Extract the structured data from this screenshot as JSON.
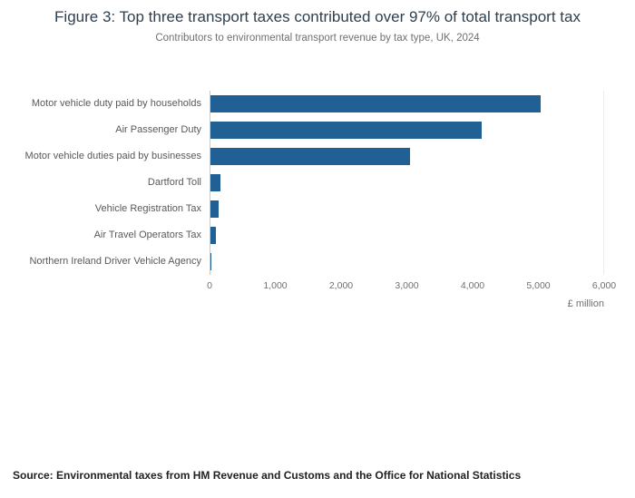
{
  "chart_data": {
    "type": "bar",
    "orientation": "horizontal",
    "title": "Figure 3: Top three transport taxes contributed over 97% of total transport tax",
    "subtitle": "Contributors to environmental transport revenue by tax type, UK, 2024",
    "categories": [
      "Motor vehicle duty paid by households",
      "Air Passenger Duty",
      "Motor vehicle duties paid by businesses",
      "Dartford Toll",
      "Vehicle Registration Tax",
      "Air Travel Operators Tax",
      "Northern Ireland Driver Vehicle Agency"
    ],
    "values": [
      5050,
      4150,
      3050,
      150,
      130,
      80,
      15
    ],
    "xlabel": "£ million",
    "xlim": [
      0,
      6000
    ],
    "xticks": [
      {
        "value": 0,
        "label": "0"
      },
      {
        "value": 1000,
        "label": "1,000"
      },
      {
        "value": 2000,
        "label": "2,000"
      },
      {
        "value": 3000,
        "label": "3,000"
      },
      {
        "value": 4000,
        "label": "4,000"
      },
      {
        "value": 5000,
        "label": "5,000"
      },
      {
        "value": 6000,
        "label": "6,000"
      }
    ],
    "bar_color": "#206095",
    "grid": "minimal",
    "legend": "none",
    "source": "Source: Environmental taxes from HM Revenue and Customs and the Office for National Statistics"
  }
}
